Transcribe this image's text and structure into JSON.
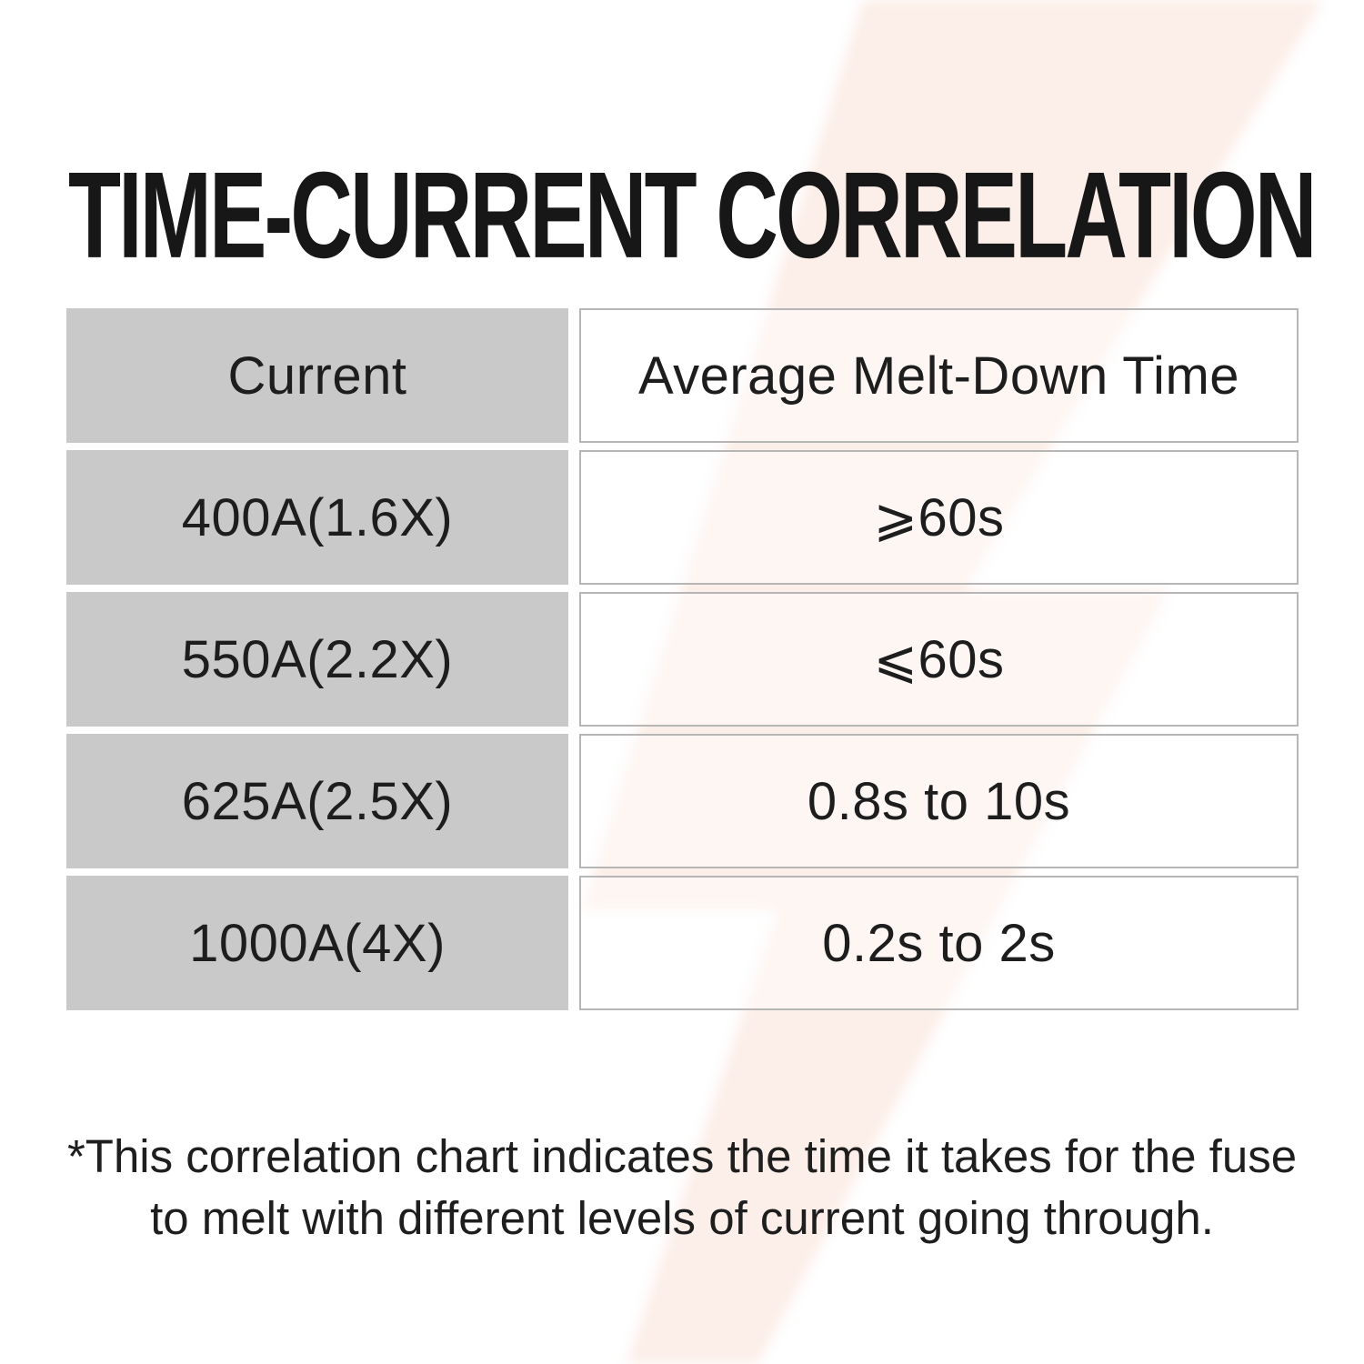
{
  "chart_data": {
    "type": "table",
    "title": "TIME-CURRENT CORRELATION",
    "columns": [
      "Current",
      "Average Melt-Down Time"
    ],
    "rows": [
      [
        "400A(1.6X)",
        "⩾60s"
      ],
      [
        "550A(2.2X)",
        "⩽60s"
      ],
      [
        "625A(2.5X)",
        "0.8s to 10s"
      ],
      [
        "1000A(4X)",
        "0.2s to 2s"
      ]
    ],
    "footnote": [
      "*This correlation chart indicates the time it takes for the fuse",
      "to melt with different levels of current going through."
    ],
    "layout": {
      "legend": "none",
      "grid": "off"
    }
  },
  "colors": {
    "label_cell_gray": "#c8c8c8",
    "bolt_pink": "#fceee8",
    "text_dark": "#1d1d1d",
    "cell_border": "#b6b6b6"
  }
}
